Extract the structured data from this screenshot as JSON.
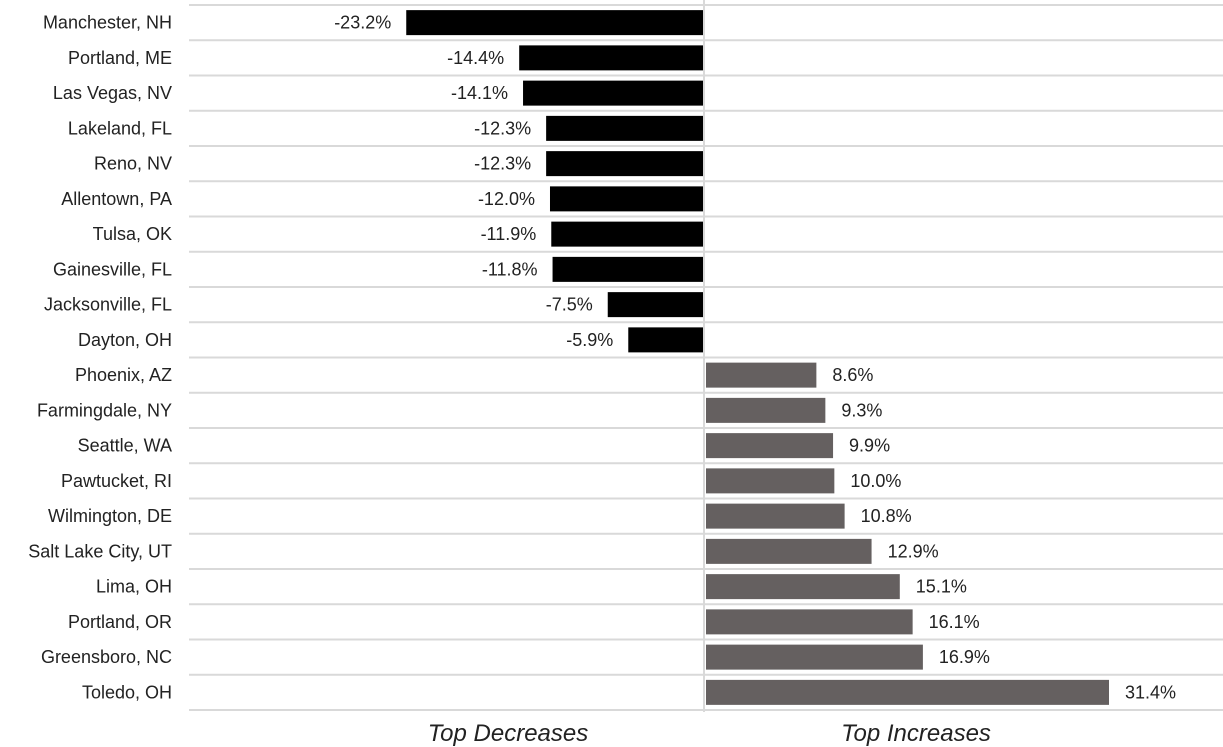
{
  "chart_data": {
    "type": "bar",
    "orientation": "horizontal",
    "categories": [
      "Manchester, NH",
      "Portland, ME",
      "Las Vegas, NV",
      "Lakeland, FL",
      "Reno, NV",
      "Allentown, PA",
      "Tulsa, OK",
      "Gainesville, FL",
      "Jacksonville, FL",
      "Dayton, OH",
      "Phoenix, AZ",
      "Farmingdale, NY",
      "Seattle, WA",
      "Pawtucket, RI",
      "Wilmington, DE",
      "Salt Lake City, UT",
      "Lima, OH",
      "Portland, OR",
      "Greensboro, NC",
      "Toledo, OH"
    ],
    "values": [
      -23.2,
      -14.4,
      -14.1,
      -12.3,
      -12.3,
      -12.0,
      -11.9,
      -11.8,
      -7.5,
      -5.9,
      8.6,
      9.3,
      9.9,
      10.0,
      10.8,
      12.9,
      15.1,
      16.1,
      16.9,
      31.4
    ],
    "data_labels": [
      "-23.2%",
      "-14.4%",
      "-14.1%",
      "-12.3%",
      "-12.3%",
      "-12.0%",
      "-11.9%",
      "-11.8%",
      "-7.5%",
      "-5.9%",
      "8.6%",
      "9.3%",
      "9.9%",
      "10.0%",
      "10.8%",
      "12.9%",
      "15.1%",
      "16.1%",
      "16.9%",
      "31.4%"
    ],
    "groups": [
      {
        "label": "Top Decreases",
        "count": 10,
        "color": "#000000"
      },
      {
        "label": "Top Increases",
        "count": 10,
        "color": "#656060"
      }
    ],
    "xlim": [
      -23.2,
      31.4
    ],
    "grid": "horizontal",
    "legend": "none"
  }
}
